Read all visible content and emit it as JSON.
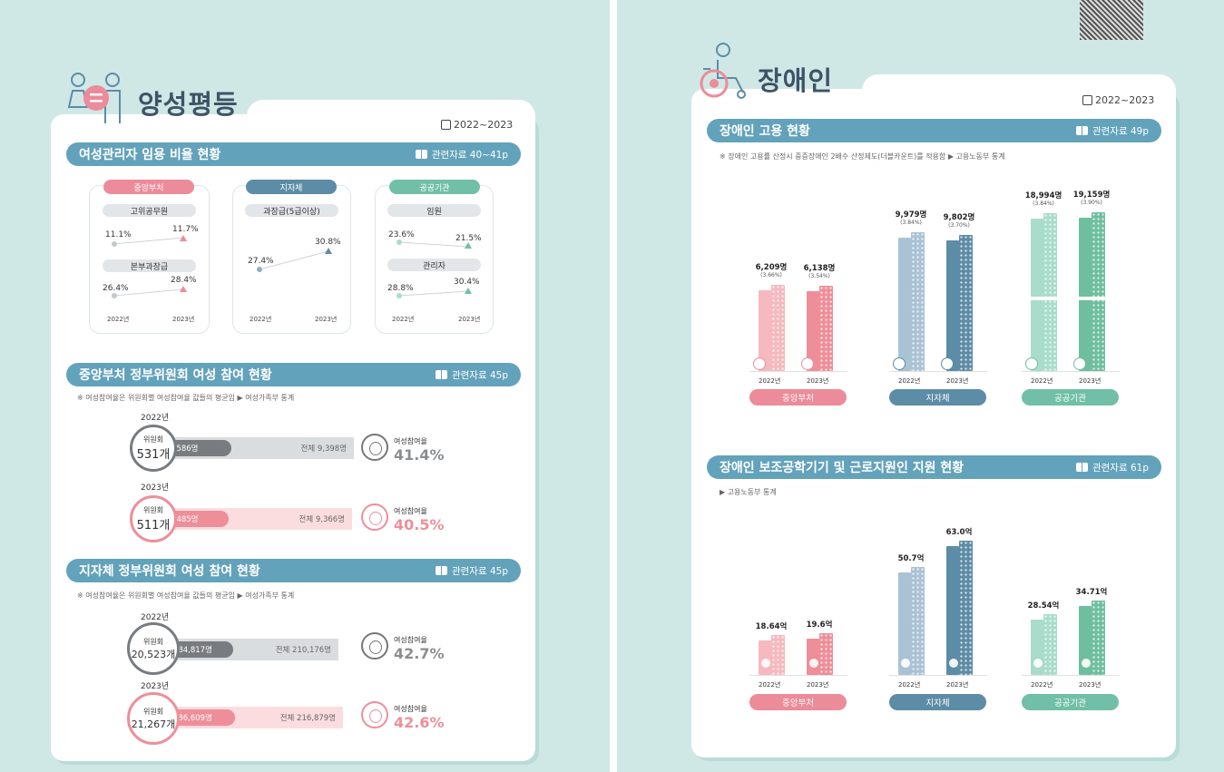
{
  "left": {
    "heading": "양성평등",
    "range": "2022~2023",
    "sec1": {
      "title": "여성관리자 임용 비율 현황",
      "ref": "관련자료 40~41p",
      "cards": [
        {
          "label": "중앙부처",
          "color": "#ec8b99",
          "rows": [
            {
              "name": "고위공무원",
              "v2022": "11.1%",
              "v2023": "11.7%"
            },
            {
              "name": "본부과장급",
              "v2022": "26.4%",
              "v2023": "28.4%"
            }
          ]
        },
        {
          "label": "지자체",
          "color": "#5d8ca6",
          "rows": [
            {
              "name": "과장급(5급이상)",
              "v2022": "27.4%",
              "v2023": "30.8%"
            }
          ]
        },
        {
          "label": "공공기관",
          "color": "#71bfa6",
          "rows": [
            {
              "name": "임원",
              "v2022": "23.6%",
              "v2023": "21.5%"
            },
            {
              "name": "관리자",
              "v2022": "28.8%",
              "v2023": "30.4%"
            }
          ]
        }
      ],
      "y2022": "2022년",
      "y2023": "2023년"
    },
    "sec2": {
      "title": "중앙부처 정부위원회 여성 참여 현황",
      "ref": "관련자료 45p",
      "note": "※ 여성참여율은 위원회별 여성참여율 값들의 평균임   ▶ 여성가족부 통계",
      "rows": [
        {
          "year": "2022년",
          "label": "위원회",
          "count": "531개",
          "female": "여성  3,586명",
          "total": "전체  9,398명",
          "rate_label": "여성참여율",
          "rate": "41.4%",
          "fill": 0.414
        },
        {
          "year": "2023년",
          "label": "위원회",
          "count": "511개",
          "female": "여성  3,485명",
          "total": "전체  9,366명",
          "rate_label": "여성참여율",
          "rate": "40.5%",
          "fill": 0.405
        }
      ]
    },
    "sec3": {
      "title": "지자체 정부위원회 여성 참여 현황",
      "ref": "관련자료 45p",
      "note": "※ 여성참여율은 위원회별 여성참여율 값들의 평균임   ▶ 여성가족부 통계",
      "rows": [
        {
          "year": "2022년",
          "label": "위원회",
          "count": "20,523개",
          "female": "여성  84,817명",
          "total": "전체  210,176명",
          "rate_label": "여성참여율",
          "rate": "42.7%",
          "fill": 0.427
        },
        {
          "year": "2023년",
          "label": "위원회",
          "count": "21,267개",
          "female": "여성  86,609명",
          "total": "전체  216,879명",
          "rate_label": "여성참여율",
          "rate": "42.6%",
          "fill": 0.426
        }
      ]
    }
  },
  "right": {
    "heading": "장애인",
    "range": "2022~2023",
    "sec1": {
      "title": "장애인 고용 현황",
      "ref": "관련자료 49p",
      "note": "※ 장애인 고용률 산정시 중증장애인 2배수 산정제도(더블카운트)를 적용함   ▶ 고용노동부 통계"
    },
    "sec2": {
      "title": "장애인 보조공학기기 및 근로지원인 지원 현황",
      "ref": "관련자료 61p",
      "note": "▶ 고용노동부 통계"
    }
  },
  "chart_data": [
    {
      "type": "bar",
      "title": "장애인 고용 현황",
      "groups": [
        "중앙부처",
        "지자체",
        "공공기관"
      ],
      "categories": [
        "2022년",
        "2023년"
      ],
      "series": [
        {
          "name": "중앙부처",
          "values": [
            6209,
            6138
          ],
          "labels": [
            "6,209명",
            "6,138명"
          ],
          "pct": [
            "(3.66%)",
            "(3.54%)"
          ],
          "colors": [
            "#f5b9bf",
            "#ee8e99"
          ]
        },
        {
          "name": "지자체",
          "values": [
            9979,
            9802
          ],
          "labels": [
            "9,979명",
            "9,802명"
          ],
          "pct": [
            "(3.84%)",
            "(3.70%)"
          ],
          "colors": [
            "#a9c3d5",
            "#5d8ca6"
          ]
        },
        {
          "name": "공공기관",
          "values": [
            18994,
            19159
          ],
          "labels": [
            "18,994명",
            "19,159명"
          ],
          "pct": [
            "(3.84%)",
            "(3.90%)"
          ],
          "colors": [
            "#a9dccb",
            "#6fbf9f"
          ]
        }
      ],
      "axis_break": true
    },
    {
      "type": "bar",
      "title": "장애인 보조공학기기 및 근로지원인 지원 현황",
      "groups": [
        "중앙부처",
        "지자체",
        "공공기관"
      ],
      "categories": [
        "2022년",
        "2023년"
      ],
      "series": [
        {
          "name": "중앙부처",
          "values": [
            18.64,
            19.6
          ],
          "labels": [
            "18.64억",
            "19.6억"
          ],
          "colors": [
            "#f5b9bf",
            "#ee8e99"
          ]
        },
        {
          "name": "지자체",
          "values": [
            50.7,
            63.0
          ],
          "labels": [
            "50.7억",
            "63.0억"
          ],
          "colors": [
            "#a9c3d5",
            "#5d8ca6"
          ]
        },
        {
          "name": "공공기관",
          "values": [
            28.54,
            34.71
          ],
          "labels": [
            "28.54억",
            "34.71억"
          ],
          "colors": [
            "#a9dccb",
            "#6fbf9f"
          ]
        }
      ]
    }
  ],
  "group_colors": {
    "중앙부처": "#ec8b99",
    "지자체": "#5d8ca6",
    "공공기관": "#71bfa6"
  }
}
